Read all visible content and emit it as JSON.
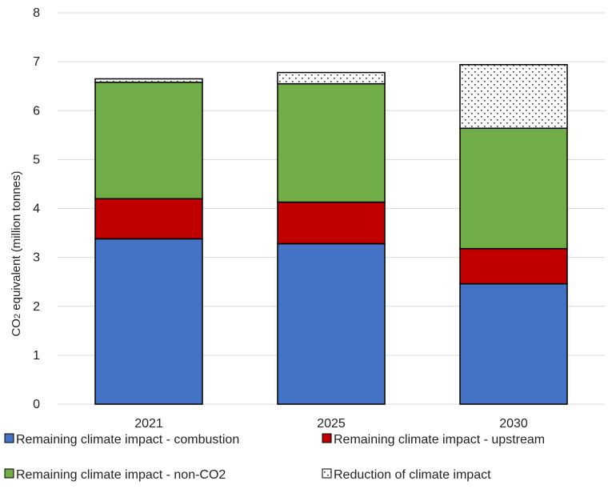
{
  "chart_data": {
    "type": "bar",
    "stacked": true,
    "categories": [
      "2021",
      "2025",
      "2030"
    ],
    "series": [
      {
        "name": "Remaining climate impact - combustion",
        "values": [
          3.38,
          3.28,
          2.46
        ],
        "color": "#4472C4",
        "pattern": "solid"
      },
      {
        "name": "Remaining climate impact - upstream",
        "values": [
          0.82,
          0.85,
          0.72
        ],
        "color": "#C00000",
        "pattern": "solid"
      },
      {
        "name": "Remaining climate impact - non-CO2",
        "values": [
          2.38,
          2.42,
          2.46
        ],
        "color": "#70AD47",
        "pattern": "solid"
      },
      {
        "name": "Reduction of climate impact",
        "values": [
          0.07,
          0.23,
          1.3
        ],
        "color": "#ffffff",
        "pattern": "dots"
      }
    ],
    "y_axis": {
      "label_prefix": "CO",
      "label_subscript": "2",
      "label_suffix": " equivalent (million tonnes)",
      "ylim": [
        0,
        8
      ],
      "ticks": [
        "0",
        "1",
        "2",
        "3",
        "4",
        "5",
        "6",
        "7",
        "8"
      ]
    },
    "xlabel": "",
    "grid": true,
    "legend_position": "bottom"
  }
}
